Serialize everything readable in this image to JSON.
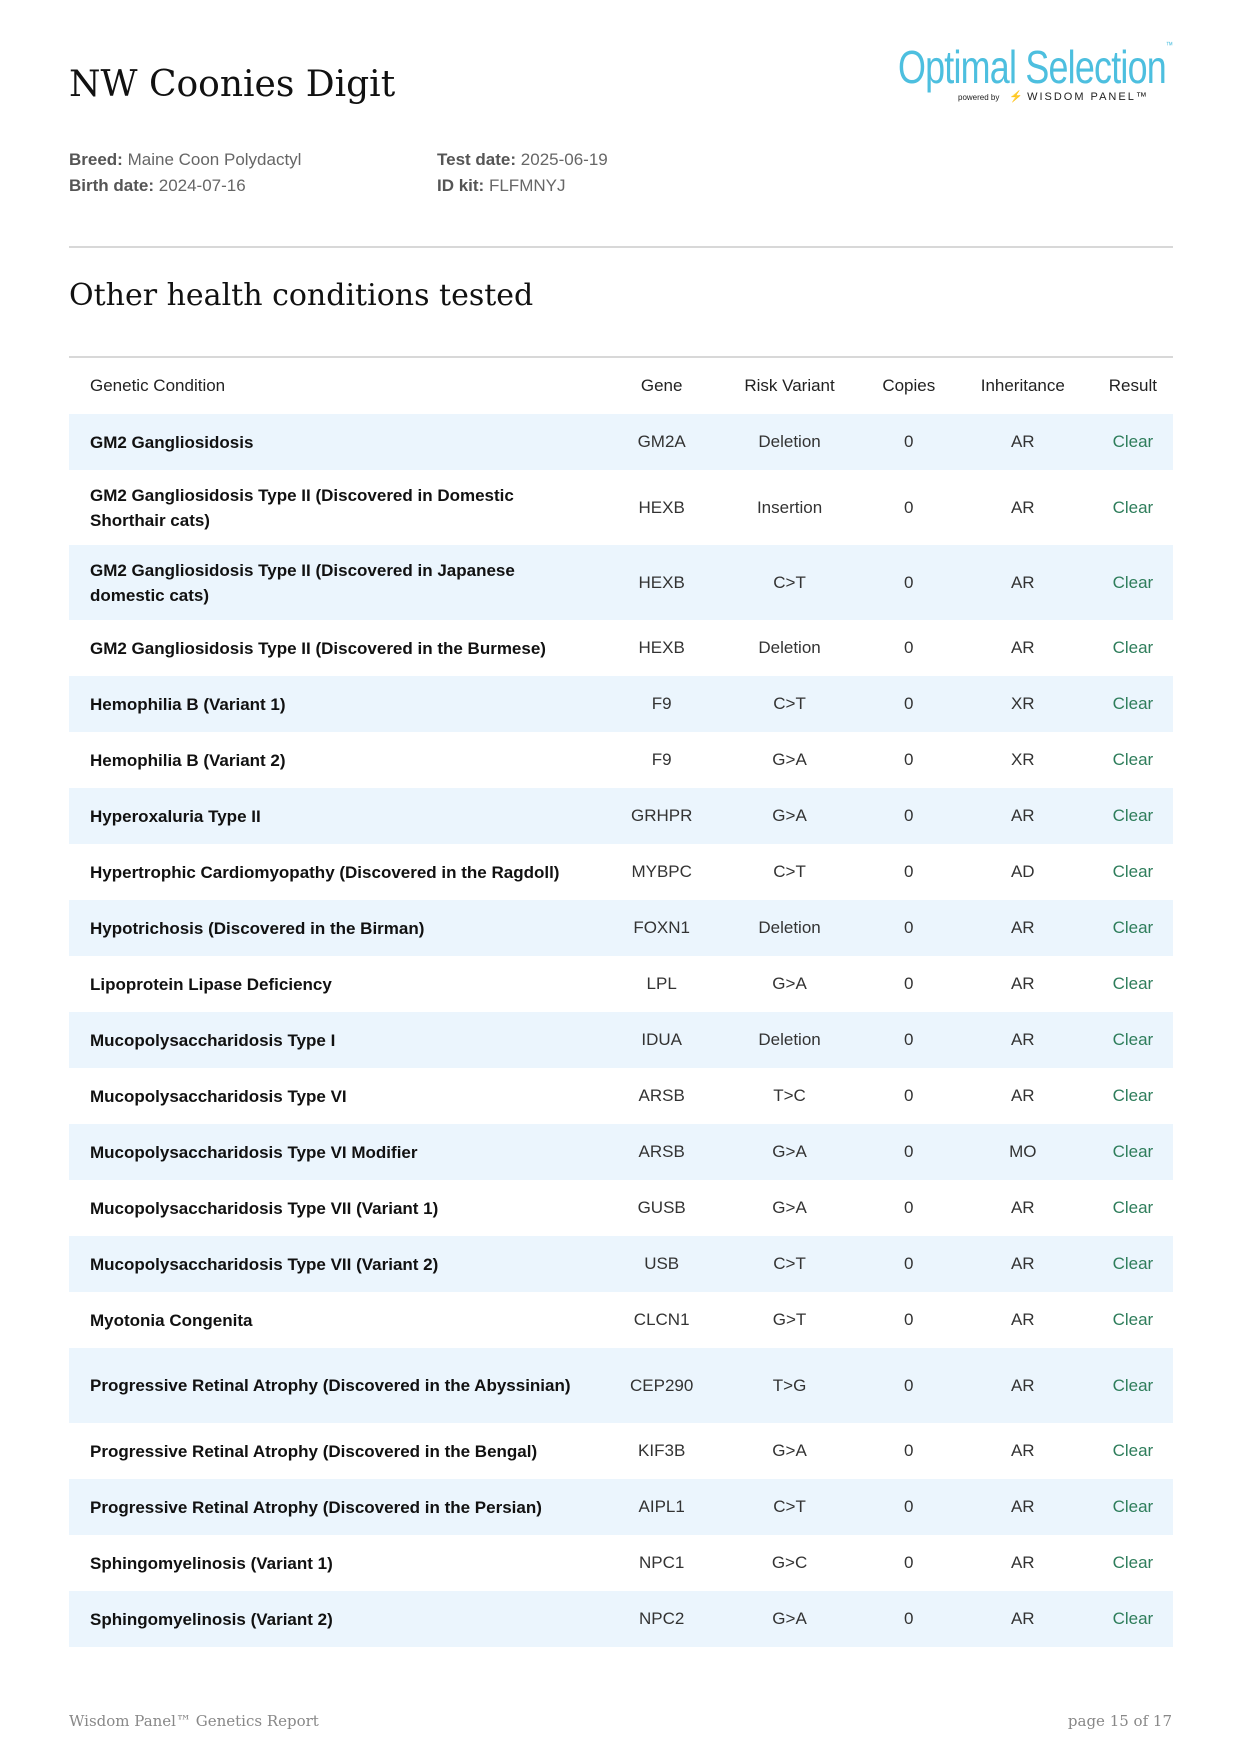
{
  "header": {
    "title": "NW Coonies Digit",
    "logo": {
      "brand": "Optimal Selection",
      "tm": "™",
      "powered_by": "powered by",
      "partner": "WISDOM PANEL™"
    }
  },
  "meta": {
    "breed_label": "Breed:",
    "breed": "Maine Coon Polydactyl",
    "birth_label": "Birth date:",
    "birth": "2024-07-16",
    "test_label": "Test date:",
    "test": "2025-06-19",
    "kit_label": "ID kit:",
    "kit": "FLFMNYJ"
  },
  "section_title": "Other health conditions tested",
  "table": {
    "headers": [
      "Genetic Condition",
      "Gene",
      "Risk Variant",
      "Copies",
      "Inheritance",
      "Result"
    ],
    "rows": [
      [
        "GM2 Gangliosidosis",
        "GM2A",
        "Deletion",
        "0",
        "AR",
        "Clear"
      ],
      [
        "GM2 Gangliosidosis Type II (Discovered in Domestic Shorthair cats)",
        "HEXB",
        "Insertion",
        "0",
        "AR",
        "Clear"
      ],
      [
        "GM2 Gangliosidosis Type II (Discovered in Japanese domestic cats)",
        "HEXB",
        "C>T",
        "0",
        "AR",
        "Clear"
      ],
      [
        "GM2 Gangliosidosis Type II (Discovered in the Burmese)",
        "HEXB",
        "Deletion",
        "0",
        "AR",
        "Clear"
      ],
      [
        "Hemophilia B (Variant 1)",
        "F9",
        "C>T",
        "0",
        "XR",
        "Clear"
      ],
      [
        "Hemophilia B (Variant 2)",
        "F9",
        "G>A",
        "0",
        "XR",
        "Clear"
      ],
      [
        "Hyperoxaluria Type II",
        "GRHPR",
        "G>A",
        "0",
        "AR",
        "Clear"
      ],
      [
        "Hypertrophic Cardiomyopathy (Discovered in the Ragdoll)",
        "MYBPC",
        "C>T",
        "0",
        "AD",
        "Clear"
      ],
      [
        "Hypotrichosis (Discovered in the Birman)",
        "FOXN1",
        "Deletion",
        "0",
        "AR",
        "Clear"
      ],
      [
        "Lipoprotein Lipase Deficiency",
        "LPL",
        "G>A",
        "0",
        "AR",
        "Clear"
      ],
      [
        "Mucopolysaccharidosis Type I",
        "IDUA",
        "Deletion",
        "0",
        "AR",
        "Clear"
      ],
      [
        "Mucopolysaccharidosis Type VI",
        "ARSB",
        "T>C",
        "0",
        "AR",
        "Clear"
      ],
      [
        "Mucopolysaccharidosis Type VI Modifier",
        "ARSB",
        "G>A",
        "0",
        "MO",
        "Clear"
      ],
      [
        "Mucopolysaccharidosis Type VII (Variant 1)",
        "GUSB",
        "G>A",
        "0",
        "AR",
        "Clear"
      ],
      [
        "Mucopolysaccharidosis Type VII (Variant 2)",
        "USB",
        "C>T",
        "0",
        "AR",
        "Clear"
      ],
      [
        "Myotonia Congenita",
        "CLCN1",
        "G>T",
        "0",
        "AR",
        "Clear"
      ],
      [
        "Progressive Retinal Atrophy (Discovered in the Abyssinian)",
        "CEP290",
        "T>G",
        "0",
        "AR",
        "Clear"
      ],
      [
        "Progressive Retinal Atrophy (Discovered in the Bengal)",
        "KIF3B",
        "G>A",
        "0",
        "AR",
        "Clear"
      ],
      [
        "Progressive Retinal Atrophy (Discovered in the Persian)",
        "AIPL1",
        "C>T",
        "0",
        "AR",
        "Clear"
      ],
      [
        "Sphingomyelinosis (Variant 1)",
        "NPC1",
        "G>C",
        "0",
        "AR",
        "Clear"
      ],
      [
        "Sphingomyelinosis (Variant 2)",
        "NPC2",
        "G>A",
        "0",
        "AR",
        "Clear"
      ]
    ]
  },
  "colors": {
    "result_clear": "#2e7d5b",
    "row_band": "#ebf5fd",
    "brand": "#4dbfdf"
  },
  "footer": {
    "left": "Wisdom Panel™ Genetics Report",
    "right": "page 15 of 17"
  }
}
